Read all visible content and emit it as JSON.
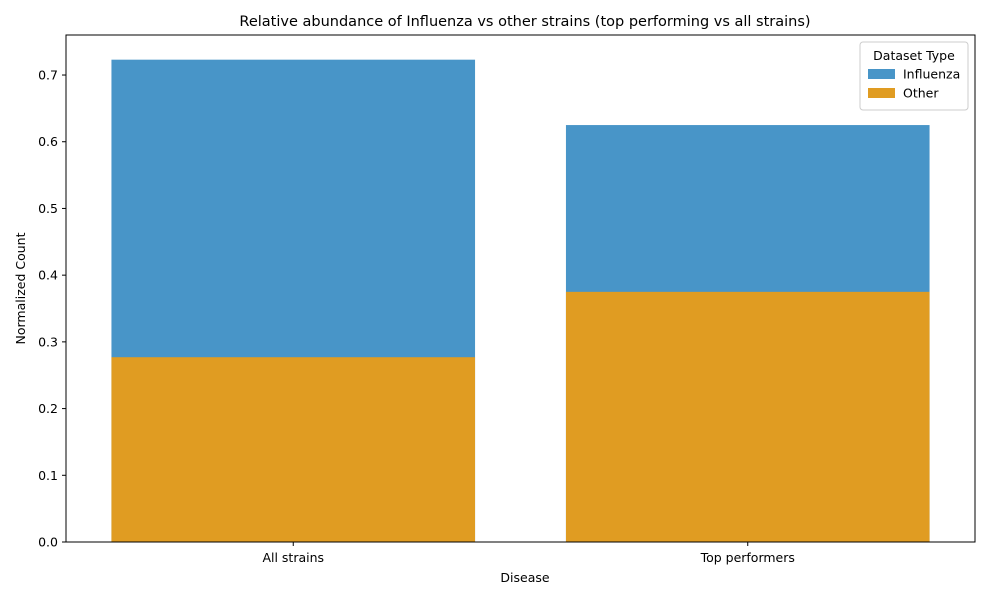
{
  "chart_data": {
    "type": "bar",
    "stacked": false,
    "title": "Relative abundance of Influenza vs other strains (top performing vs all strains)",
    "xlabel": "Disease",
    "ylabel": "Normalized Count",
    "categories": [
      "All strains",
      "Top performers"
    ],
    "series": [
      {
        "name": "Influenza",
        "color": "#4895c8",
        "values": [
          0.723,
          0.625
        ]
      },
      {
        "name": "Other",
        "color": "#e09c22",
        "values": [
          0.277,
          0.375
        ]
      }
    ],
    "ylim": [
      0,
      0.76
    ],
    "yticks": [
      0.0,
      0.1,
      0.2,
      0.3,
      0.4,
      0.5,
      0.6,
      0.7
    ],
    "ytick_labels": [
      "0.0",
      "0.1",
      "0.2",
      "0.3",
      "0.4",
      "0.5",
      "0.6",
      "0.7"
    ],
    "legend": {
      "title": "Dataset Type",
      "position": "top-right"
    },
    "grid": false
  }
}
